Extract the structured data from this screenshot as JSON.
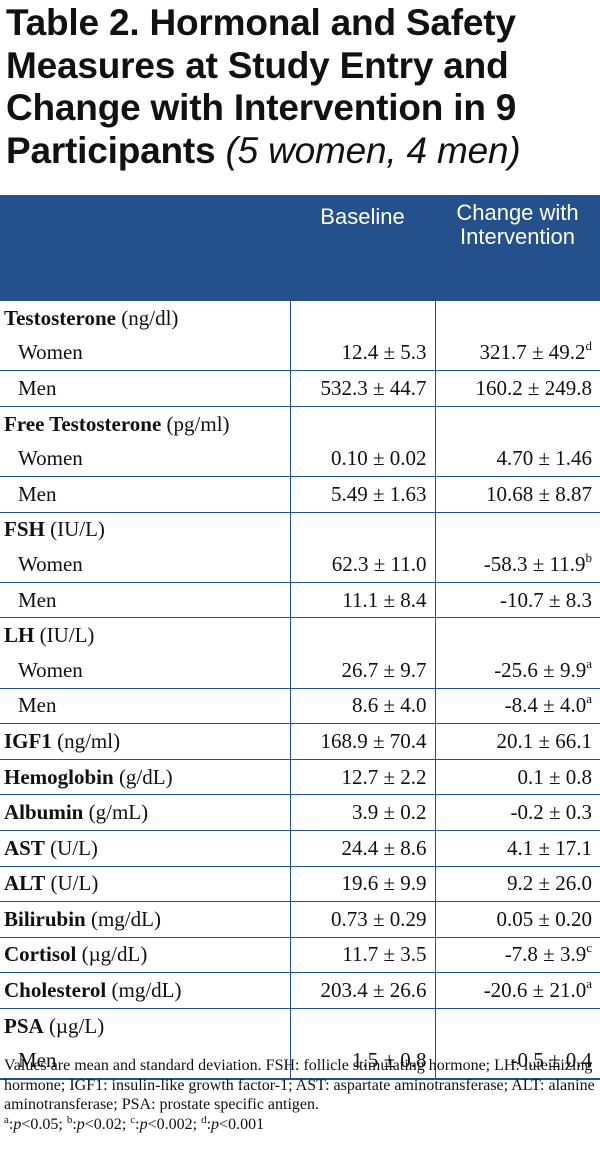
{
  "title": {
    "bold": "Table 2. Hormonal and Safety Measures at Study Entry and Change with Intervention in 9 Participants",
    "italic": "(5 women, 4 men)"
  },
  "header": {
    "col2": "Baseline",
    "col3": "Change with Intervention"
  },
  "rows": [
    {
      "kind": "group",
      "name": "Testosterone",
      "unit": "(ng/dl)"
    },
    {
      "kind": "sub",
      "name": "Women",
      "baseline": "12.4 ± 5.3",
      "change": "321.7 ± 49.2",
      "sup": "d"
    },
    {
      "kind": "sub",
      "name": "Men",
      "baseline": "532.3 ± 44.7",
      "change": "160.2 ± 249.8"
    },
    {
      "kind": "group",
      "name": "Free Testosterone",
      "unit": "(pg/ml)"
    },
    {
      "kind": "sub",
      "name": "Women",
      "baseline": "0.10 ± 0.02",
      "change": "4.70 ± 1.46"
    },
    {
      "kind": "sub",
      "name": "Men",
      "baseline": "5.49 ± 1.63",
      "change": "10.68 ± 8.87"
    },
    {
      "kind": "group",
      "name": "FSH",
      "unit": "(IU/L)"
    },
    {
      "kind": "sub",
      "name": "Women",
      "baseline": "62.3 ± 11.0",
      "change": "-58.3 ± 11.9",
      "sup": "b"
    },
    {
      "kind": "sub",
      "name": "Men",
      "baseline": "11.1 ± 8.4",
      "change": "-10.7 ± 8.3"
    },
    {
      "kind": "group",
      "name": "LH",
      "unit": "(IU/L)"
    },
    {
      "kind": "sub",
      "name": "Women",
      "baseline": "26.7 ± 9.7",
      "change": "-25.6 ± 9.9",
      "sup": "a"
    },
    {
      "kind": "sub",
      "name": "Men",
      "baseline": "8.6 ± 4.0",
      "change": "-8.4 ± 4.0",
      "sup": "a"
    },
    {
      "kind": "single",
      "name": "IGF1",
      "unit": "(ng/ml)",
      "baseline": "168.9 ± 70.4",
      "change": "20.1 ± 66.1"
    },
    {
      "kind": "single",
      "name": "Hemoglobin",
      "unit": "(g/dL)",
      "baseline": "12.7 ± 2.2",
      "change": "0.1 ± 0.8"
    },
    {
      "kind": "single",
      "name": "Albumin",
      "unit": "(g/mL)",
      "baseline": "3.9 ± 0.2",
      "change": "-0.2 ± 0.3"
    },
    {
      "kind": "single",
      "name": "AST",
      "unit": "(U/L)",
      "baseline": "24.4 ± 8.6",
      "change": "4.1 ± 17.1"
    },
    {
      "kind": "single",
      "name": "ALT",
      "unit": "(U/L)",
      "baseline": "19.6 ± 9.9",
      "change": "9.2 ± 26.0"
    },
    {
      "kind": "single",
      "name": "Bilirubin",
      "unit": "(mg/dL)",
      "baseline": "0.73 ± 0.29",
      "change": "0.05 ± 0.20"
    },
    {
      "kind": "single",
      "name": "Cortisol",
      "unit": "(µg/dL)",
      "baseline": "11.7 ± 3.5",
      "change": "-7.8 ± 3.9",
      "sup": "c"
    },
    {
      "kind": "single",
      "name": "Cholesterol",
      "unit": "(mg/dL)",
      "baseline": "203.4 ± 26.6",
      "change": "-20.6 ± 21.0",
      "sup": "a"
    },
    {
      "kind": "group",
      "name": "PSA",
      "unit": "(µg/L)"
    },
    {
      "kind": "sub",
      "name": "Men",
      "baseline": "1.5 ± 0.8",
      "change": "-0.5 ± 0.4"
    }
  ],
  "notes": {
    "text": "Values are mean and standard deviation.  FSH: follicle stimulating hormone; LH: luteinizing hormone; IGF1: insulin-like growth factor-1; AST: aspartate aminotransferase; ALT: alanine aminotransferase; PSA: prostate specific antigen.",
    "footnotes": [
      {
        "mark": "a",
        "text": "p<0.05"
      },
      {
        "mark": "b",
        "text": "p<0.02"
      },
      {
        "mark": "c",
        "text": "p<0.002"
      },
      {
        "mark": "d",
        "text": "p<0.001"
      }
    ]
  },
  "colors": {
    "header_bg": "#24508c",
    "rule": "#24508c",
    "text": "#111111"
  }
}
